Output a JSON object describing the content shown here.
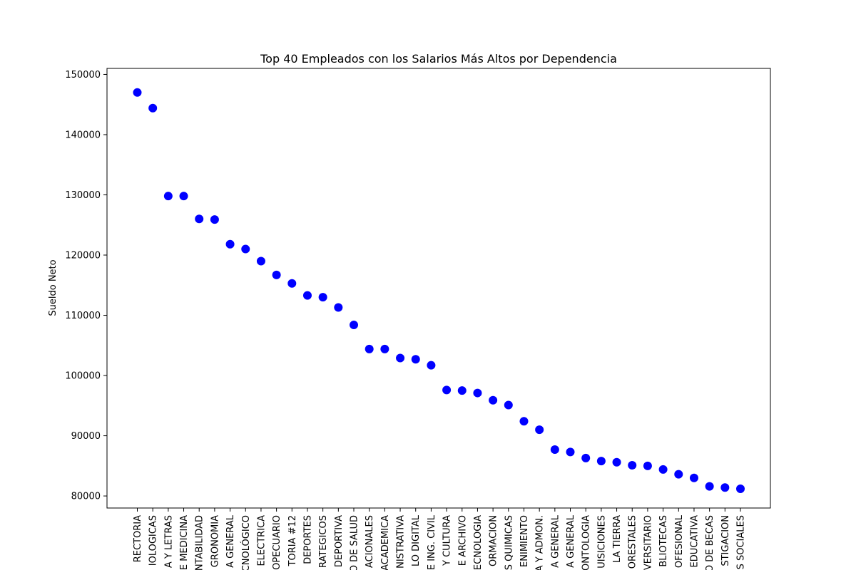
{
  "chart_data": {
    "type": "scatter",
    "title": "Top 40 Empleados con los Salarios Más Altos por Dependencia",
    "xlabel": "",
    "ylabel": "Sueldo Neto",
    "ylim": [
      78000,
      151000
    ],
    "y_ticks": [
      80000,
      90000,
      100000,
      110000,
      120000,
      130000,
      140000,
      150000
    ],
    "grid": false,
    "legend": "none",
    "marker_color": "#0000ff",
    "categories": [
      "RECTORIA",
      "IOLOGICAS",
      "A Y LETRAS",
      "E MEDICINA",
      "NTABILIDAD",
      "GRONOMIA",
      "A GENERAL",
      "ECNOLÓGICO",
      "ELECTRICA",
      "OPECUARIO",
      "TORIA #12",
      "DEPORTES",
      "RATEGICOS",
      "DEPORTIVA",
      "O DE SALUD",
      "ACIONALES",
      "ACADEMICA",
      "NISTRATIVA",
      "LO DIGITAL",
      "E ING. CIVIL",
      "Y CULTURA",
      "E ARCHIVO",
      "ECNOLOGIA",
      "ORMACION",
      "S QUIMICAS",
      "ENIMIENTO",
      "A Y ADMON.",
      "A GENERAL",
      "A GENERAL",
      "ONTOLOGIA",
      "UISICIONES",
      "LA TIERRA",
      "ORESTALES",
      "VERSITARIO",
      "BLIOTECAS",
      "OFESIONAL",
      "EDUCATIVA",
      "O DE BECAS",
      "STIGACION",
      "S SOCIALES"
    ],
    "values": [
      147000,
      144400,
      129800,
      129800,
      126000,
      125900,
      121800,
      121000,
      119000,
      116700,
      115300,
      113300,
      113000,
      111300,
      108400,
      104400,
      104400,
      102900,
      102700,
      101700,
      97600,
      97500,
      97100,
      95900,
      95100,
      92400,
      91000,
      87700,
      87300,
      86300,
      85800,
      85600,
      85100,
      85000,
      84400,
      83600,
      83000,
      81600,
      81400,
      81200
    ]
  }
}
